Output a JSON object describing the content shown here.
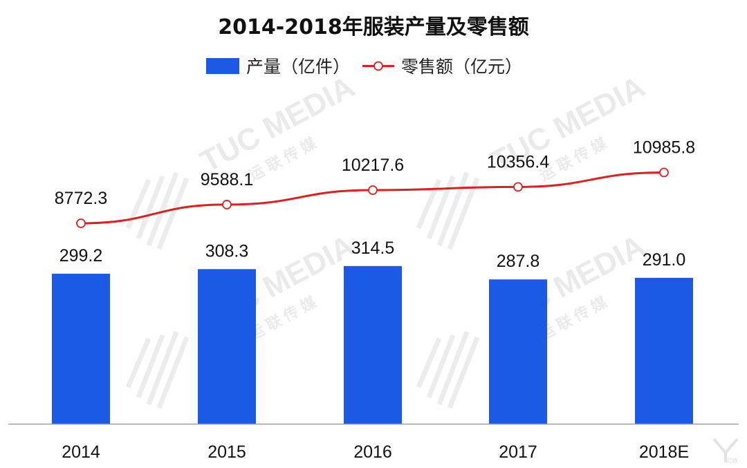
{
  "title": "2014-2018年服装产量及零售额",
  "legend": {
    "bar_label": "产量（亿件）",
    "line_label": "零售额（亿元）"
  },
  "watermark": {
    "brand": "TUC MEDIA",
    "sub": "运 联 传 媒",
    "corner_logo": "亿欧"
  },
  "colors": {
    "bar": "#1c5ae6",
    "line": "#e01e1e",
    "axis": "#9e9e9e"
  },
  "chart_data": {
    "type": "bar",
    "title": "2014-2018年服装产量及零售额",
    "categories": [
      "2014",
      "2015",
      "2016",
      "2017",
      "2018E"
    ],
    "series": [
      {
        "name": "产量（亿件）",
        "type": "bar",
        "values": [
          299.2,
          308.3,
          314.5,
          287.8,
          291.0
        ],
        "labels": [
          "299.2",
          "308.3",
          "314.5",
          "287.8",
          "291.0"
        ]
      },
      {
        "name": "零售额（亿元）",
        "type": "line",
        "values": [
          8772.3,
          9588.1,
          10217.6,
          10356.4,
          10985.8
        ],
        "labels": [
          "8772.3",
          "9588.1",
          "10217.6",
          "10356.4",
          "10985.8"
        ]
      }
    ],
    "xlabel": "",
    "ylabel": "",
    "grid": false,
    "legend_position": "top-center"
  }
}
